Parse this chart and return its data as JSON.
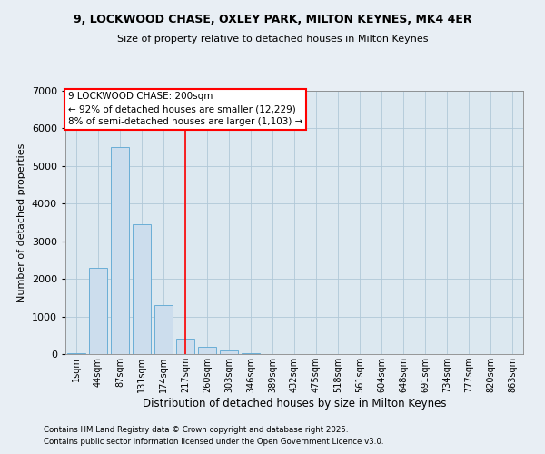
{
  "title1": "9, LOCKWOOD CHASE, OXLEY PARK, MILTON KEYNES, MK4 4ER",
  "title2": "Size of property relative to detached houses in Milton Keynes",
  "xlabel": "Distribution of detached houses by size in Milton Keynes",
  "ylabel": "Number of detached properties",
  "categories": [
    "1sqm",
    "44sqm",
    "87sqm",
    "131sqm",
    "174sqm",
    "217sqm",
    "260sqm",
    "303sqm",
    "346sqm",
    "389sqm",
    "432sqm",
    "475sqm",
    "518sqm",
    "561sqm",
    "604sqm",
    "648sqm",
    "691sqm",
    "734sqm",
    "777sqm",
    "820sqm",
    "863sqm"
  ],
  "values": [
    20,
    2300,
    5500,
    3450,
    1300,
    400,
    200,
    100,
    30,
    10,
    5,
    3,
    2,
    1,
    1,
    1,
    1,
    1,
    1,
    1,
    1
  ],
  "bar_color": "#ccdded",
  "bar_edge_color": "#6aaed6",
  "vline_x_idx": 5,
  "vline_color": "red",
  "annotation_text": "9 LOCKWOOD CHASE: 200sqm\n← 92% of detached houses are smaller (12,229)\n8% of semi-detached houses are larger (1,103) →",
  "annotation_box_color": "white",
  "annotation_box_edge": "red",
  "ylim": [
    0,
    7000
  ],
  "yticks": [
    0,
    1000,
    2000,
    3000,
    4000,
    5000,
    6000,
    7000
  ],
  "footer1": "Contains HM Land Registry data © Crown copyright and database right 2025.",
  "footer2": "Contains public sector information licensed under the Open Government Licence v3.0.",
  "bg_color": "#e8eef4",
  "plot_bg_color": "#dce8f0"
}
